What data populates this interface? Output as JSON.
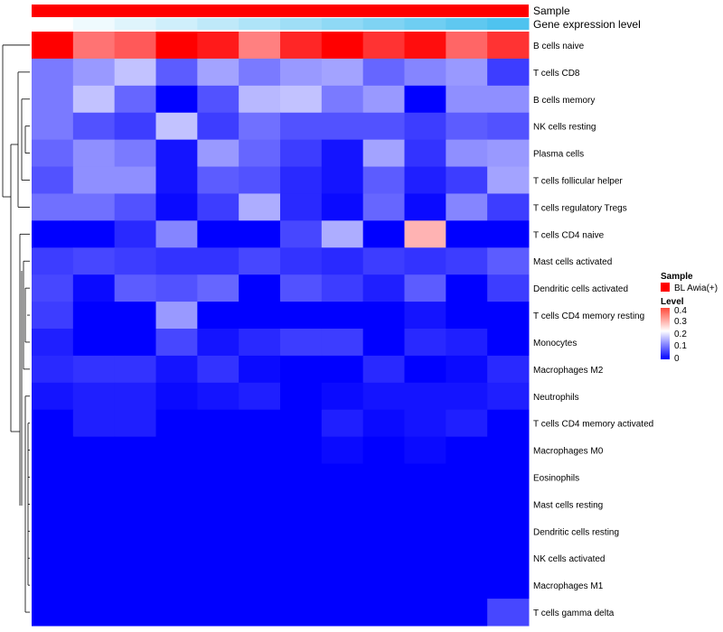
{
  "chart_data": {
    "type": "heatmap",
    "annotation_tracks": [
      {
        "name": "Sample",
        "color": "#ff0000"
      },
      {
        "name": "Gene expression level",
        "gradient": [
          "#ffffff",
          "#4fc3ef"
        ]
      }
    ],
    "rows": [
      "B cells naive",
      "T cells CD8",
      "B cells memory",
      "NK cells resting",
      "Plasma cells",
      "T cells follicular helper",
      "T cells regulatory  Tregs",
      "T cells CD4 naive",
      "Mast cells activated",
      "Dendritic cells activated",
      "T cells CD4 memory resting",
      "Monocytes",
      "Macrophages M2",
      "Neutrophils",
      "T cells CD4 memory activated",
      "Macrophages M0",
      "Eosinophils",
      "Mast cells resting",
      "Dendritic cells resting",
      "NK cells activated",
      "Macrophages M1",
      "T cells gamma delta"
    ],
    "values": [
      [
        0.45,
        0.36,
        0.38,
        0.45,
        0.43,
        0.35,
        0.42,
        0.45,
        0.41,
        0.44,
        0.37,
        0.41
      ],
      [
        0.12,
        0.15,
        0.19,
        0.09,
        0.16,
        0.12,
        0.15,
        0.16,
        0.1,
        0.13,
        0.15,
        0.06
      ],
      [
        0.12,
        0.19,
        0.1,
        0.0,
        0.08,
        0.18,
        0.19,
        0.12,
        0.15,
        0.0,
        0.14,
        0.14
      ],
      [
        0.12,
        0.08,
        0.06,
        0.19,
        0.06,
        0.11,
        0.08,
        0.08,
        0.08,
        0.06,
        0.09,
        0.08
      ],
      [
        0.1,
        0.14,
        0.12,
        0.02,
        0.15,
        0.1,
        0.06,
        0.02,
        0.16,
        0.05,
        0.14,
        0.15
      ],
      [
        0.08,
        0.14,
        0.14,
        0.02,
        0.09,
        0.08,
        0.04,
        0.02,
        0.09,
        0.03,
        0.06,
        0.16
      ],
      [
        0.11,
        0.11,
        0.08,
        0.01,
        0.06,
        0.17,
        0.04,
        0.01,
        0.1,
        0.01,
        0.13,
        0.06
      ],
      [
        0.0,
        0.0,
        0.04,
        0.13,
        0.0,
        0.0,
        0.07,
        0.17,
        0.0,
        0.31,
        0.0,
        0.0
      ],
      [
        0.06,
        0.07,
        0.06,
        0.05,
        0.05,
        0.07,
        0.05,
        0.04,
        0.06,
        0.05,
        0.06,
        0.09
      ],
      [
        0.07,
        0.01,
        0.09,
        0.08,
        0.1,
        0.0,
        0.08,
        0.06,
        0.03,
        0.09,
        0.0,
        0.06
      ],
      [
        0.06,
        0.0,
        0.0,
        0.15,
        0.0,
        0.0,
        0.0,
        0.0,
        0.0,
        0.02,
        0.0,
        0.0
      ],
      [
        0.03,
        0.0,
        0.0,
        0.07,
        0.02,
        0.04,
        0.06,
        0.06,
        0.0,
        0.04,
        0.03,
        0.0
      ],
      [
        0.04,
        0.05,
        0.05,
        0.02,
        0.05,
        0.01,
        0.0,
        0.0,
        0.04,
        0.0,
        0.01,
        0.04
      ],
      [
        0.02,
        0.03,
        0.03,
        0.01,
        0.02,
        0.03,
        0.0,
        0.01,
        0.02,
        0.02,
        0.02,
        0.03
      ],
      [
        0.0,
        0.03,
        0.03,
        0.0,
        0.0,
        0.0,
        0.0,
        0.03,
        0.01,
        0.02,
        0.03,
        0.0
      ],
      [
        0.0,
        0.0,
        0.0,
        0.0,
        0.0,
        0.0,
        0.0,
        0.01,
        0.0,
        0.01,
        0.0,
        0.0
      ],
      [
        0.0,
        0.0,
        0.0,
        0.0,
        0.0,
        0.0,
        0.0,
        0.0,
        0.0,
        0.0,
        0.0,
        0.0
      ],
      [
        0.0,
        0.0,
        0.0,
        0.0,
        0.0,
        0.0,
        0.0,
        0.0,
        0.0,
        0.0,
        0.0,
        0.0
      ],
      [
        0.0,
        0.0,
        0.0,
        0.0,
        0.0,
        0.0,
        0.0,
        0.0,
        0.0,
        0.0,
        0.0,
        0.0
      ],
      [
        0.0,
        0.0,
        0.0,
        0.0,
        0.0,
        0.0,
        0.0,
        0.0,
        0.0,
        0.0,
        0.0,
        0.0
      ],
      [
        0.0,
        0.0,
        0.0,
        0.0,
        0.0,
        0.0,
        0.0,
        0.0,
        0.0,
        0.0,
        0.0,
        0.0
      ],
      [
        0.0,
        0.0,
        0.0,
        0.0,
        0.0,
        0.0,
        0.0,
        0.0,
        0.0,
        0.0,
        0.0,
        0.07
      ]
    ],
    "scale": {
      "min": 0,
      "max": 0.45,
      "colors": [
        "#0000ff",
        "#ffffff",
        "#ff0000"
      ],
      "mid": 0.25
    },
    "legend": {
      "sample_title": "Sample",
      "sample_entry": "BL Awia(+)",
      "level_title": "Level",
      "ticks": [
        "0.4",
        "0.3",
        "0.2",
        "0.1",
        "0"
      ]
    },
    "row_dendrogram": true
  }
}
